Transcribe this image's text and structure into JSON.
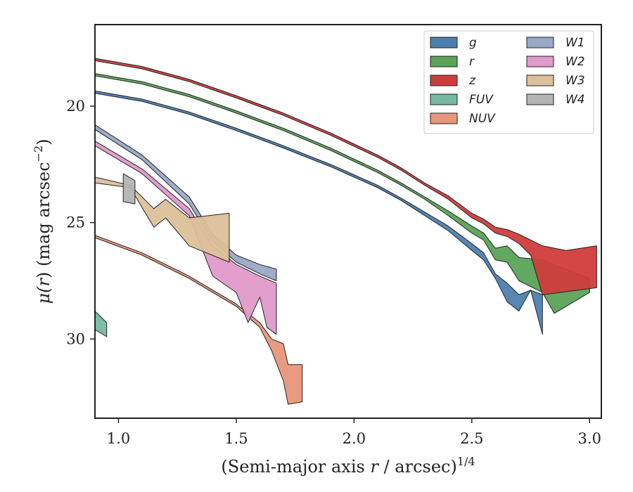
{
  "chart_data": {
    "type": "area",
    "title": "",
    "xlabel": "(Semi-major axis r / arcsec)^1/4",
    "xlabel_parts": {
      "before": "(Semi-major axis ",
      "var": "r",
      "after": " / arcsec)",
      "sup": "1/4"
    },
    "ylabel": "μ(r) (mag arcsec^−2)",
    "ylabel_parts": {
      "mu": "μ(",
      "var": "r",
      "close": ")",
      "unit": " (mag arcsec",
      "sup": "−2",
      "end": ")"
    },
    "xlim": [
      0.9,
      3.05
    ],
    "ylim": [
      33.4,
      16.5
    ],
    "y_inverted": true,
    "xticks": [
      1.0,
      1.5,
      2.0,
      2.5,
      3.0
    ],
    "xtick_labels": [
      "1.0",
      "1.5",
      "2.0",
      "2.5",
      "3.0"
    ],
    "yticks": [
      20,
      25,
      30
    ],
    "ytick_labels": [
      "20",
      "25",
      "30"
    ],
    "grid": false,
    "legend": {
      "position": "top-right",
      "columns": 2
    },
    "series": [
      {
        "name": "g",
        "color": "#4c7fb0",
        "upper": [
          [
            0.9,
            19.35
          ],
          [
            1.1,
            19.7
          ],
          [
            1.3,
            20.25
          ],
          [
            1.5,
            20.95
          ],
          [
            1.7,
            21.7
          ],
          [
            1.9,
            22.5
          ],
          [
            2.1,
            23.4
          ],
          [
            2.2,
            23.95
          ],
          [
            2.3,
            24.55
          ],
          [
            2.4,
            25.15
          ],
          [
            2.5,
            25.9
          ],
          [
            2.55,
            26.3
          ],
          [
            2.6,
            27.2
          ],
          [
            2.65,
            27.6
          ],
          [
            2.7,
            28.1
          ],
          [
            2.75,
            27.9
          ],
          [
            2.8,
            28.1
          ]
        ],
        "lower": [
          [
            0.9,
            19.45
          ],
          [
            1.1,
            19.8
          ],
          [
            1.3,
            20.35
          ],
          [
            1.5,
            21.05
          ],
          [
            1.7,
            21.8
          ],
          [
            1.9,
            22.6
          ],
          [
            2.1,
            23.5
          ],
          [
            2.2,
            24.05
          ],
          [
            2.3,
            24.7
          ],
          [
            2.4,
            25.35
          ],
          [
            2.5,
            26.2
          ],
          [
            2.55,
            26.6
          ],
          [
            2.6,
            27.4
          ],
          [
            2.65,
            28.4
          ],
          [
            2.7,
            28.8
          ],
          [
            2.75,
            27.9
          ],
          [
            2.8,
            29.8
          ]
        ]
      },
      {
        "name": "r",
        "color": "#5aa357",
        "upper": [
          [
            0.9,
            18.6
          ],
          [
            1.1,
            18.95
          ],
          [
            1.3,
            19.5
          ],
          [
            1.5,
            20.2
          ],
          [
            1.7,
            20.95
          ],
          [
            1.9,
            21.8
          ],
          [
            2.1,
            22.75
          ],
          [
            2.2,
            23.3
          ],
          [
            2.3,
            23.9
          ],
          [
            2.4,
            24.5
          ],
          [
            2.5,
            25.15
          ],
          [
            2.55,
            25.45
          ],
          [
            2.6,
            26.1
          ],
          [
            2.65,
            26.0
          ],
          [
            2.7,
            26.5
          ],
          [
            2.8,
            26.6
          ],
          [
            3.0,
            27.4
          ]
        ],
        "lower": [
          [
            0.9,
            18.7
          ],
          [
            1.1,
            19.05
          ],
          [
            1.3,
            19.6
          ],
          [
            1.5,
            20.3
          ],
          [
            1.7,
            21.05
          ],
          [
            1.9,
            21.9
          ],
          [
            2.1,
            22.85
          ],
          [
            2.2,
            23.4
          ],
          [
            2.3,
            24.0
          ],
          [
            2.4,
            24.7
          ],
          [
            2.5,
            25.45
          ],
          [
            2.55,
            25.75
          ],
          [
            2.6,
            26.6
          ],
          [
            2.65,
            26.7
          ],
          [
            2.7,
            27.5
          ],
          [
            2.8,
            28.0
          ],
          [
            2.85,
            28.9
          ],
          [
            3.0,
            28.0
          ]
        ]
      },
      {
        "name": "z",
        "color": "#d03c3c",
        "upper": [
          [
            0.9,
            17.95
          ],
          [
            1.1,
            18.3
          ],
          [
            1.3,
            18.85
          ],
          [
            1.5,
            19.55
          ],
          [
            1.7,
            20.3
          ],
          [
            1.9,
            21.15
          ],
          [
            2.1,
            22.1
          ],
          [
            2.2,
            22.65
          ],
          [
            2.3,
            23.3
          ],
          [
            2.4,
            23.85
          ],
          [
            2.5,
            24.6
          ],
          [
            2.55,
            24.85
          ],
          [
            2.6,
            25.2
          ],
          [
            2.65,
            25.3
          ],
          [
            2.7,
            25.5
          ],
          [
            2.8,
            26.0
          ],
          [
            2.9,
            26.2
          ],
          [
            3.03,
            26.0
          ]
        ],
        "lower": [
          [
            0.9,
            18.05
          ],
          [
            1.1,
            18.4
          ],
          [
            1.3,
            18.95
          ],
          [
            1.5,
            19.65
          ],
          [
            1.7,
            20.4
          ],
          [
            1.9,
            21.25
          ],
          [
            2.1,
            22.2
          ],
          [
            2.2,
            22.75
          ],
          [
            2.3,
            23.4
          ],
          [
            2.4,
            24.0
          ],
          [
            2.5,
            24.8
          ],
          [
            2.55,
            25.05
          ],
          [
            2.6,
            25.45
          ],
          [
            2.65,
            25.6
          ],
          [
            2.7,
            25.9
          ],
          [
            2.75,
            26.4
          ],
          [
            2.8,
            28.1
          ],
          [
            3.03,
            27.8
          ]
        ]
      },
      {
        "name": "FUV",
        "color": "#76b8a0",
        "upper": [
          [
            0.9,
            28.8
          ],
          [
            0.95,
            29.3
          ]
        ],
        "lower": [
          [
            0.9,
            29.6
          ],
          [
            0.95,
            29.9
          ]
        ]
      },
      {
        "name": "NUV",
        "color": "#e8967a",
        "upper": [
          [
            0.9,
            25.55
          ],
          [
            1.1,
            26.3
          ],
          [
            1.3,
            27.3
          ],
          [
            1.5,
            28.5
          ],
          [
            1.6,
            29.3
          ],
          [
            1.65,
            30.0
          ],
          [
            1.7,
            30.2
          ],
          [
            1.72,
            31.1
          ],
          [
            1.78,
            31.1
          ]
        ],
        "lower": [
          [
            0.9,
            25.65
          ],
          [
            1.1,
            26.4
          ],
          [
            1.3,
            27.4
          ],
          [
            1.5,
            28.6
          ],
          [
            1.6,
            29.5
          ],
          [
            1.65,
            30.5
          ],
          [
            1.7,
            31.8
          ],
          [
            1.72,
            32.8
          ],
          [
            1.78,
            32.7
          ]
        ]
      },
      {
        "name": "W1",
        "color": "#9aa8c8",
        "upper": [
          [
            0.9,
            20.8
          ],
          [
            1.1,
            22.1
          ],
          [
            1.3,
            23.9
          ],
          [
            1.4,
            25.5
          ],
          [
            1.5,
            26.4
          ],
          [
            1.6,
            26.8
          ],
          [
            1.67,
            27.0
          ]
        ],
        "lower": [
          [
            0.9,
            21.0
          ],
          [
            1.1,
            22.3
          ],
          [
            1.3,
            24.2
          ],
          [
            1.4,
            25.8
          ],
          [
            1.5,
            26.7
          ],
          [
            1.6,
            27.2
          ],
          [
            1.67,
            27.5
          ]
        ]
      },
      {
        "name": "W2",
        "color": "#e09acb",
        "upper": [
          [
            0.9,
            21.5
          ],
          [
            1.1,
            22.7
          ],
          [
            1.3,
            24.4
          ],
          [
            1.4,
            26.0
          ],
          [
            1.5,
            26.8
          ],
          [
            1.6,
            27.3
          ],
          [
            1.67,
            27.6
          ]
        ],
        "lower": [
          [
            0.9,
            21.7
          ],
          [
            1.1,
            22.9
          ],
          [
            1.3,
            24.7
          ],
          [
            1.4,
            27.3
          ],
          [
            1.5,
            28.0
          ],
          [
            1.55,
            29.3
          ],
          [
            1.6,
            28.2
          ],
          [
            1.63,
            29.5
          ],
          [
            1.67,
            29.8
          ]
        ]
      },
      {
        "name": "W3",
        "color": "#dcc09a",
        "upper": [
          [
            0.9,
            23.05
          ],
          [
            1.05,
            23.4
          ],
          [
            1.15,
            24.4
          ],
          [
            1.2,
            24.0
          ],
          [
            1.3,
            24.8
          ],
          [
            1.47,
            24.6
          ]
        ],
        "lower": [
          [
            0.9,
            23.3
          ],
          [
            1.05,
            23.5
          ],
          [
            1.15,
            25.2
          ],
          [
            1.2,
            24.8
          ],
          [
            1.3,
            26.0
          ],
          [
            1.47,
            26.7
          ]
        ]
      },
      {
        "name": "W4",
        "color": "#b4b4b4",
        "upper": [
          [
            1.02,
            22.9
          ],
          [
            1.07,
            23.2
          ]
        ],
        "lower": [
          [
            1.02,
            24.1
          ],
          [
            1.07,
            24.2
          ]
        ]
      }
    ]
  }
}
